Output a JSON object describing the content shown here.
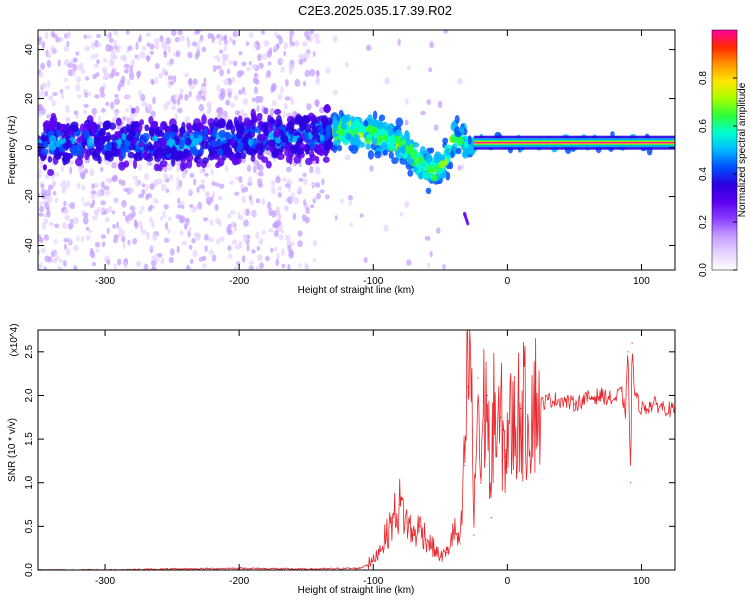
{
  "title": "C2E3.2025.035.17.39.R02",
  "colormap": [
    "#ffffff",
    "#e6d2ff",
    "#c39bff",
    "#8a3dff",
    "#5a00f0",
    "#2a00e0",
    "#0050ff",
    "#00b8ff",
    "#00ffd0",
    "#2cff3a",
    "#a6ff00",
    "#ffe600",
    "#ff9400",
    "#ff2a00",
    "#ff00a0"
  ],
  "chart_data": [
    {
      "type": "heatmap",
      "xlabel": "Height of straight line (km)",
      "ylabel": "Frequency (Hz)",
      "xlim": [
        -350,
        125
      ],
      "ylim": [
        -50,
        48
      ],
      "xticks": [
        -300,
        -200,
        -100,
        0,
        100
      ],
      "yticks": [
        -40,
        -20,
        0,
        20,
        40
      ],
      "colorbar": {
        "label": "Normalized spectral amplitude",
        "range": [
          0.0,
          1.0
        ],
        "ticks": [
          0.0,
          0.2,
          0.4,
          0.6,
          0.8
        ]
      },
      "ridge": {
        "x": [
          -350,
          -300,
          -250,
          -200,
          -150,
          -120,
          -100,
          -85,
          -75,
          -65,
          -55,
          -45,
          -40,
          -35,
          -30,
          -20,
          0,
          50,
          80,
          90,
          100,
          125
        ],
        "y": [
          2,
          2,
          2,
          3,
          5,
          7,
          6,
          3,
          0,
          -6,
          -10,
          -4,
          3,
          4,
          0,
          2,
          2,
          2,
          2,
          3,
          2,
          2
        ]
      }
    },
    {
      "type": "line",
      "xlabel": "Height of straight line (km)",
      "ylabel": "SNR (10 * v/v)",
      "y_multiplier": "(x10^4)",
      "xlim": [
        -350,
        125
      ],
      "ylim": [
        0,
        2.75
      ],
      "xticks": [
        -300,
        -200,
        -100,
        0,
        100
      ],
      "yticks": [
        0.0,
        0.5,
        1.0,
        1.5,
        2.0,
        2.5
      ],
      "series": [
        {
          "color": "#e8262b",
          "x": [
            -350,
            -300,
            -250,
            -200,
            -150,
            -110,
            -100,
            -95,
            -90,
            -85,
            -80,
            -75,
            -70,
            -65,
            -60,
            -55,
            -50,
            -45,
            -40,
            -35,
            -32,
            -30,
            -28,
            -26,
            -25,
            -22,
            -20,
            -18,
            -15,
            -12,
            -10,
            -8,
            -5,
            -2,
            0,
            5,
            10,
            15,
            20,
            25,
            30,
            40,
            50,
            60,
            70,
            80,
            85,
            88,
            90,
            92,
            93,
            95,
            100,
            110,
            125
          ],
          "y": [
            0.0,
            0.0,
            0.01,
            0.02,
            0.01,
            0.02,
            0.1,
            0.25,
            0.4,
            0.6,
            0.75,
            0.55,
            0.4,
            0.5,
            0.35,
            0.25,
            0.15,
            0.2,
            0.45,
            0.3,
            1.2,
            2.1,
            2.62,
            1.6,
            0.4,
            2.2,
            1.0,
            1.8,
            2.0,
            0.6,
            2.35,
            1.3,
            1.75,
            1.3,
            1.6,
            1.65,
            1.85,
            1.75,
            1.95,
            1.9,
            1.95,
            1.95,
            1.9,
            1.97,
            2.0,
            1.95,
            2.05,
            1.8,
            2.5,
            1.0,
            2.6,
            2.0,
            1.85,
            1.9,
            1.82
          ]
        }
      ]
    }
  ]
}
